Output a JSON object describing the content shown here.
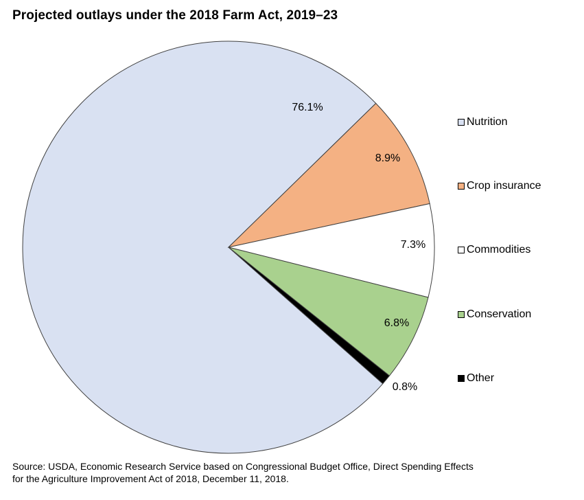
{
  "chart_data": {
    "type": "pie",
    "title": "Projected outlays under the 2018 Farm Act, 2019–23",
    "start_angle_deg": 0,
    "direction": "clockwise_from_3_oclock_backwards",
    "slices": [
      {
        "name": "Nutrition",
        "value": 76.1,
        "label": "76.1%",
        "color": "#D9E1F2"
      },
      {
        "name": "Crop insurance",
        "value": 8.9,
        "label": "8.9%",
        "color": "#F4B183"
      },
      {
        "name": "Commodities",
        "value": 7.3,
        "label": "7.3%",
        "color": "#FFFFFF"
      },
      {
        "name": "Conservation",
        "value": 6.8,
        "label": "6.8%",
        "color": "#A9D18E"
      },
      {
        "name": "Other",
        "value": 0.8,
        "label": "0.8%",
        "color": "#000000"
      }
    ],
    "legend_position": "right",
    "slice_border_color": "#404040"
  },
  "source": {
    "line1": "Source: USDA, Economic Research Service based on Congressional Budget Office, Direct Spending Effects",
    "line2": "for the Agriculture Improvement Act of 2018, December 11, 2018."
  }
}
